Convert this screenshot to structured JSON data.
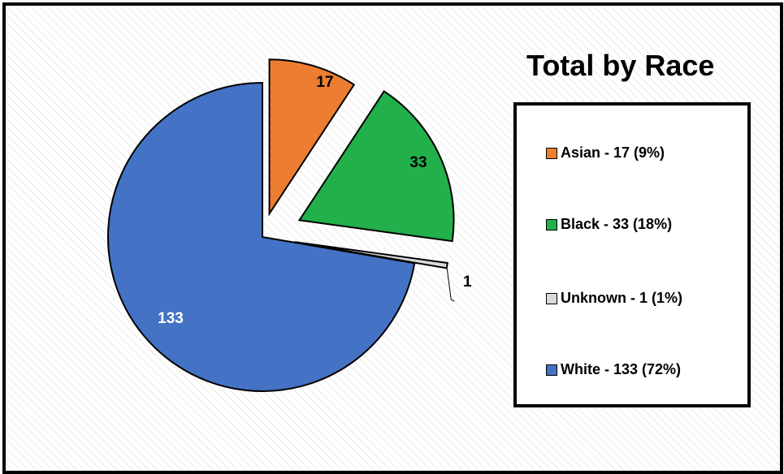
{
  "chart_data": {
    "type": "pie",
    "title": "Total by Race",
    "legend_position": "right",
    "slices": [
      {
        "label": "Asian",
        "value": 17,
        "percent": "9%",
        "legend": "Asian - 17 (9%)",
        "data_label": "17",
        "color": "#ED7D31",
        "label_color": "#000000"
      },
      {
        "label": "Black",
        "value": 33,
        "percent": "18%",
        "legend": "Black - 33 (18%)",
        "data_label": "33",
        "color": "#21B04A",
        "label_color": "#000000"
      },
      {
        "label": "Unknown",
        "value": 1,
        "percent": "1%",
        "legend": "Unknown - 1 (1%)",
        "data_label": "1",
        "color": "#D9D9D9",
        "label_color": "#000000"
      },
      {
        "label": "White",
        "value": 133,
        "percent": "72%",
        "legend": "White - 133 (72%)",
        "data_label": "133",
        "color": "#4472C4",
        "label_color": "#ffffff"
      }
    ]
  }
}
